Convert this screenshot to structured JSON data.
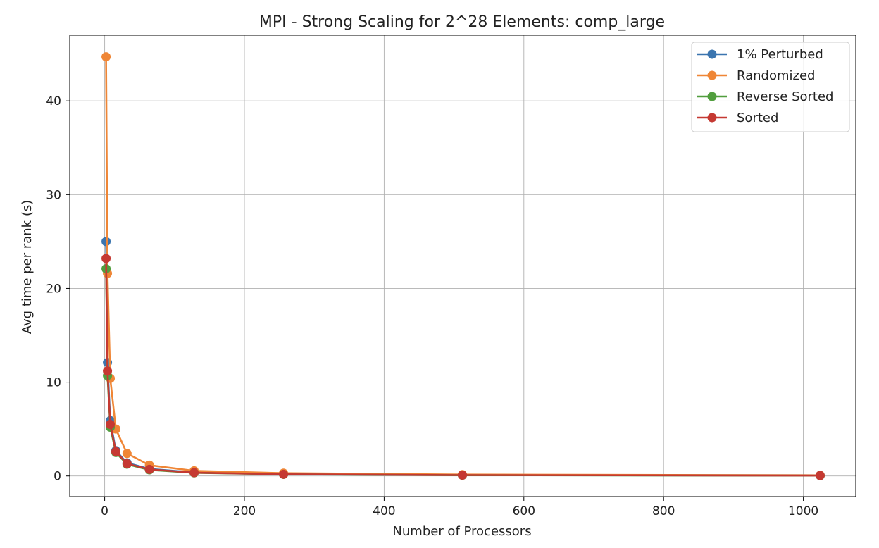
{
  "chart_data": {
    "type": "line",
    "title": "MPI - Strong Scaling for 2^28 Elements: comp_large",
    "xlabel": "Number of Processors",
    "ylabel": "Avg time per rank (s)",
    "xlim": [
      -50,
      1075
    ],
    "ylim": [
      -2.2,
      47.0
    ],
    "xticks": [
      0,
      200,
      400,
      600,
      800,
      1000
    ],
    "yticks": [
      0,
      10,
      20,
      30,
      40
    ],
    "grid": true,
    "legend_position": "upper right",
    "x": [
      2,
      4,
      8,
      16,
      32,
      64,
      128,
      256,
      512,
      1024
    ],
    "series": [
      {
        "name": "1% Perturbed",
        "color": "#3b75af",
        "values": [
          25.0,
          12.1,
          5.9,
          2.7,
          1.4,
          0.75,
          0.38,
          0.2,
          0.1,
          0.05
        ]
      },
      {
        "name": "Randomized",
        "color": "#ef8636",
        "values": [
          44.7,
          21.6,
          10.4,
          5.0,
          2.4,
          1.15,
          0.55,
          0.3,
          0.15,
          0.07
        ]
      },
      {
        "name": "Reverse Sorted",
        "color": "#519e3e",
        "values": [
          22.1,
          10.7,
          5.2,
          2.5,
          1.25,
          0.65,
          0.33,
          0.17,
          0.08,
          0.04
        ]
      },
      {
        "name": "Sorted",
        "color": "#c53932",
        "values": [
          23.2,
          11.2,
          5.5,
          2.6,
          1.3,
          0.7,
          0.35,
          0.18,
          0.09,
          0.05
        ]
      }
    ]
  }
}
